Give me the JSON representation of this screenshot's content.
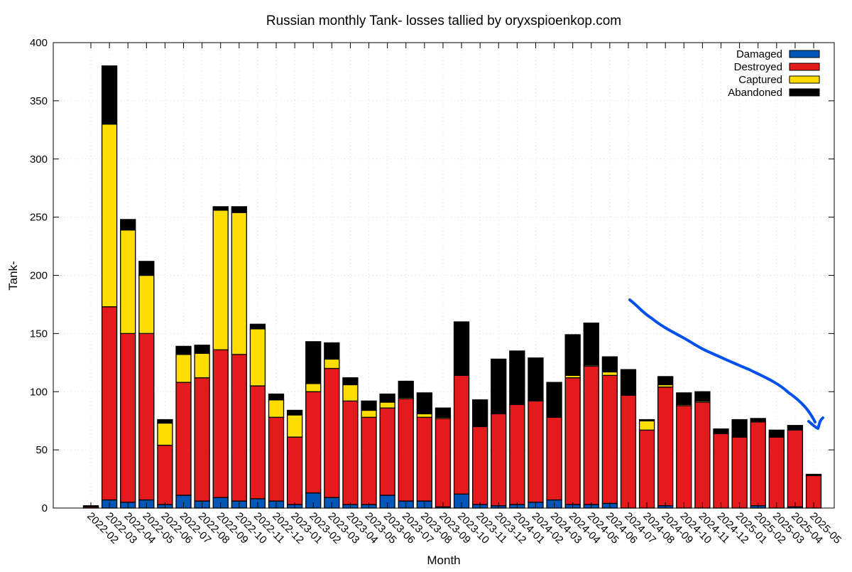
{
  "chart_data": {
    "type": "bar",
    "stacked": true,
    "title": "Russian monthly Tank- losses tallied by oryxspioenkop.com",
    "xlabel": "Month",
    "ylabel": "Tank-",
    "ylim": [
      0,
      400
    ],
    "yticks": [
      0,
      50,
      100,
      150,
      200,
      250,
      300,
      350,
      400
    ],
    "grid": true,
    "legend_position": "top-right",
    "categories": [
      "2022-02",
      "2022-03",
      "2022-04",
      "2022-05",
      "2022-06",
      "2022-07",
      "2022-08",
      "2022-09",
      "2022-10",
      "2022-11",
      "2022-12",
      "2023-01",
      "2023-02",
      "2023-03",
      "2023-04",
      "2023-05",
      "2023-06",
      "2023-07",
      "2023-08",
      "2023-09",
      "2023-10",
      "2023-11",
      "2023-12",
      "2024-01",
      "2024-02",
      "2024-03",
      "2024-04",
      "2024-05",
      "2024-06",
      "2024-07",
      "2024-08",
      "2024-09",
      "2024-10",
      "2024-11",
      "2024-12",
      "2025-01",
      "2025-02",
      "2025-03",
      "2025-04",
      "2025-05"
    ],
    "series": [
      {
        "name": "Damaged",
        "color": "#0057b7",
        "values": [
          0,
          7,
          5,
          7,
          3,
          11,
          6,
          9,
          6,
          8,
          6,
          3,
          13,
          9,
          3,
          3,
          11,
          6,
          6,
          1,
          12,
          3,
          2,
          3,
          5,
          7,
          3,
          3,
          4,
          0,
          0,
          2,
          0,
          0,
          0,
          0,
          2,
          0,
          1,
          0
        ]
      },
      {
        "name": "Destroyed",
        "color": "#e41a1c",
        "values": [
          1,
          166,
          145,
          143,
          51,
          97,
          106,
          127,
          126,
          97,
          72,
          58,
          87,
          111,
          89,
          75,
          75,
          88,
          72,
          76,
          102,
          67,
          79,
          86,
          87,
          71,
          109,
          119,
          110,
          97,
          67,
          102,
          88,
          91,
          64,
          61,
          72,
          61,
          66,
          28
        ]
      },
      {
        "name": "Captured",
        "color": "#ffdd00",
        "values": [
          0,
          157,
          89,
          50,
          19,
          24,
          21,
          120,
          122,
          49,
          15,
          19,
          7,
          8,
          14,
          6,
          5,
          1,
          3,
          1,
          0,
          0,
          0,
          0,
          0,
          0,
          2,
          1,
          3,
          0,
          8,
          2,
          1,
          1,
          0,
          0,
          0,
          0,
          0,
          0
        ]
      },
      {
        "name": "Abandoned",
        "color": "#000000",
        "values": [
          1,
          50,
          9,
          12,
          3,
          7,
          7,
          3,
          5,
          4,
          5,
          4,
          36,
          14,
          6,
          8,
          7,
          14,
          18,
          8,
          46,
          23,
          47,
          46,
          37,
          30,
          35,
          36,
          13,
          22,
          1,
          7,
          10,
          8,
          4,
          15,
          3,
          6,
          4,
          1
        ]
      }
    ]
  },
  "annotation": {
    "arrow_color": "#0050ee"
  }
}
